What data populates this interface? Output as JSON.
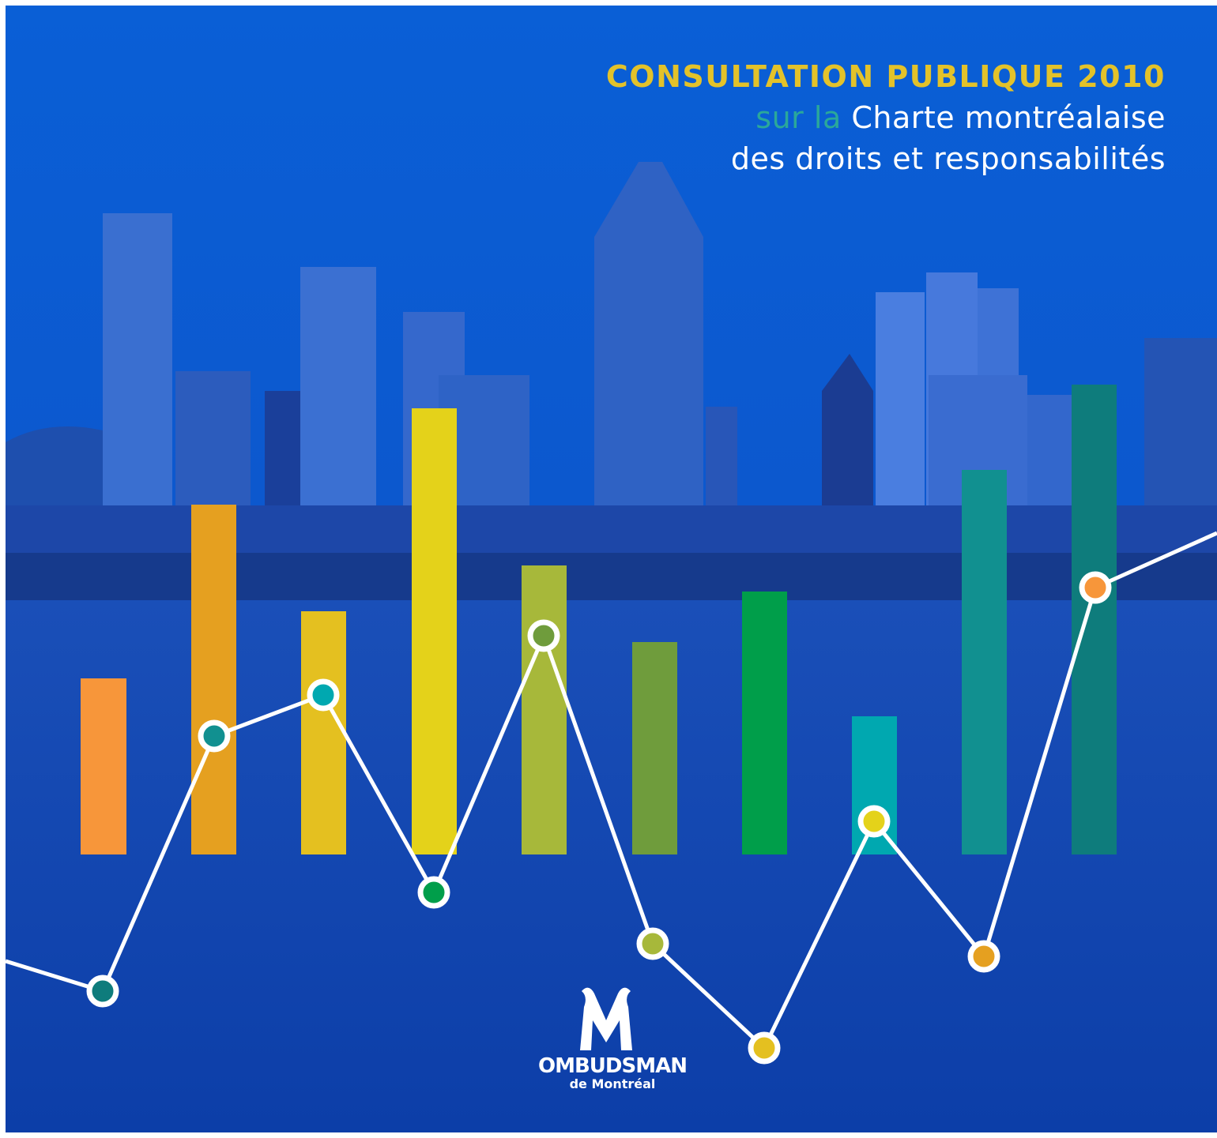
{
  "header": {
    "title": "CONSULTATION PUBLIQUE 2010",
    "subtitle_prefix": "sur la",
    "subtitle_line1": "Charte montréalaise",
    "subtitle_line2": "des droits et responsabilités"
  },
  "logo": {
    "name": "OMBUDSMAN",
    "place": "de Montréal"
  }
}
